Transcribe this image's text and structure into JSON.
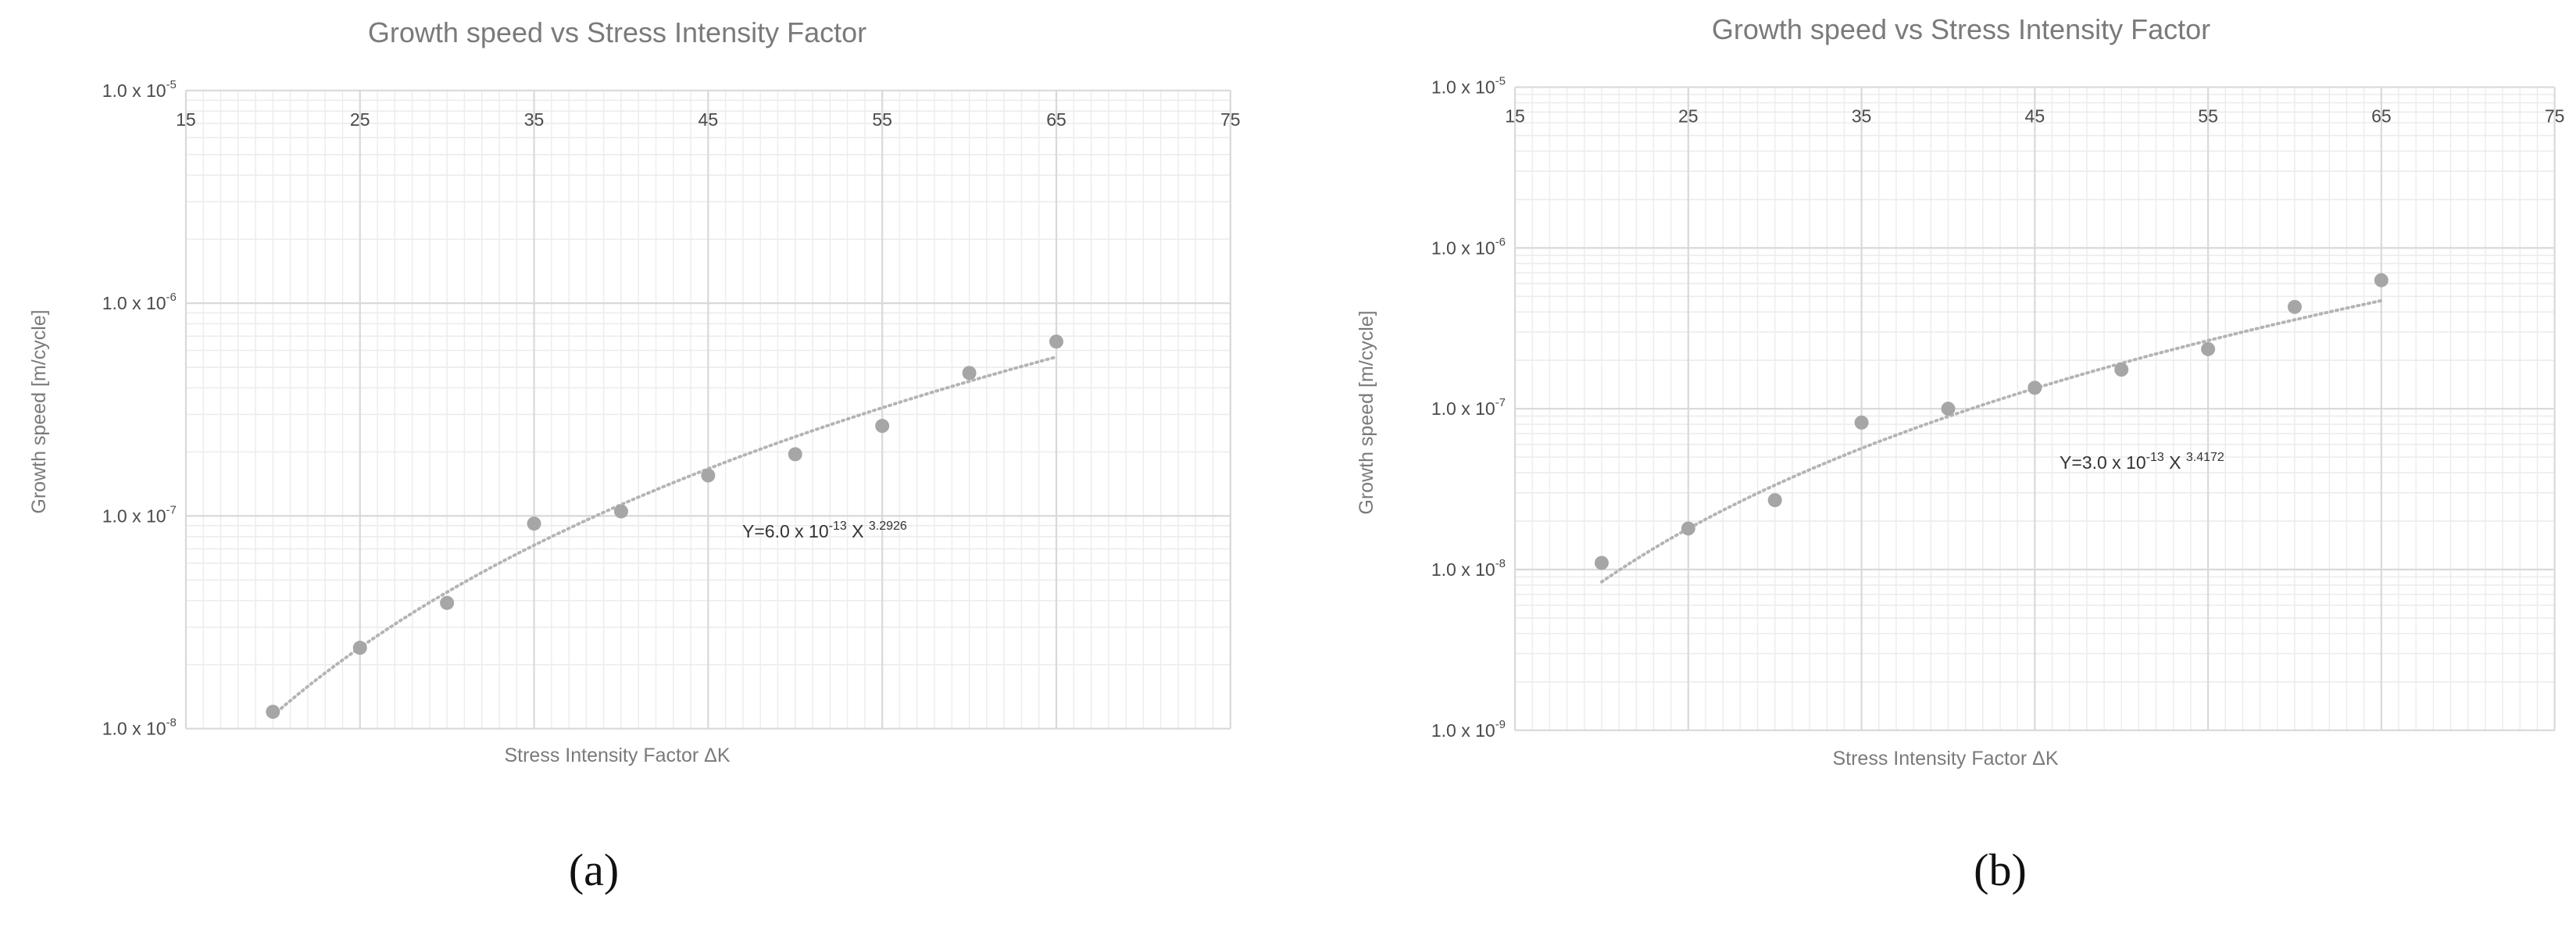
{
  "chart_data": [
    {
      "type": "scatter",
      "title": "Growth speed vs Stress Intensity Factor",
      "xlabel": "Stress Intensity Factor ΔK",
      "ylabel": "Growth speed [m/cycle]",
      "panel_label": "(a)",
      "x_ticks": [
        "15",
        "25",
        "35",
        "45",
        "55",
        "65",
        "75"
      ],
      "xlim": [
        15,
        75
      ],
      "y_scale": "log",
      "ylim": [
        1e-08,
        1e-05
      ],
      "y_ticks": [
        {
          "value": 1e-08,
          "mantissa": "1.0 x 10",
          "exp": "-8"
        },
        {
          "value": 1e-07,
          "mantissa": "1.0 x 10",
          "exp": "-7"
        },
        {
          "value": 1e-06,
          "mantissa": "1.0 x 10",
          "exp": "-6"
        },
        {
          "value": 1e-05,
          "mantissa": "1.0 x 10",
          "exp": "-5"
        }
      ],
      "grid": true,
      "series": [
        {
          "x": [
            20,
            25,
            30,
            35,
            40,
            45,
            50,
            55,
            60,
            65
          ],
          "y": [
            1.2e-08,
            2.4e-08,
            3.9e-08,
            9.2e-08,
            1.05e-07,
            1.55e-07,
            1.95e-07,
            2.65e-07,
            4.7e-07,
            6.6e-07
          ]
        }
      ],
      "trendline": {
        "type": "power",
        "coef": 6e-13,
        "exponent": 3.2926,
        "x_range": [
          20,
          65
        ]
      },
      "equation": {
        "prefix": "Y=6.0 x 10",
        "sup1": "-13",
        "mid": " X ",
        "sup2": "3.2926"
      },
      "colors": {
        "points": "#a6a6a6",
        "trend": "#b4b4b4",
        "grid_major": "#d9d9d9",
        "grid_minor": "#ececec"
      }
    },
    {
      "type": "scatter",
      "title": "Growth speed vs Stress Intensity Factor",
      "xlabel": "Stress Intensity Factor ΔK",
      "ylabel": "Growth speed [m/cycle]",
      "panel_label": "(b)",
      "x_ticks": [
        "15",
        "25",
        "35",
        "45",
        "55",
        "65",
        "75"
      ],
      "xlim": [
        15,
        75
      ],
      "y_scale": "log",
      "ylim": [
        1e-09,
        1e-05
      ],
      "y_ticks": [
        {
          "value": 1e-09,
          "mantissa": "1.0 x 10",
          "exp": "-9"
        },
        {
          "value": 1e-08,
          "mantissa": "1.0 x 10",
          "exp": "-8"
        },
        {
          "value": 1e-07,
          "mantissa": "1.0 x 10",
          "exp": "-7"
        },
        {
          "value": 1e-06,
          "mantissa": "1.0 x 10",
          "exp": "-6"
        },
        {
          "value": 1e-05,
          "mantissa": "1.0 x 10",
          "exp": "-5"
        }
      ],
      "grid": true,
      "series": [
        {
          "x": [
            20,
            25,
            30,
            35,
            40,
            45,
            50,
            55,
            60,
            65
          ],
          "y": [
            1.1e-08,
            1.8e-08,
            2.7e-08,
            8.2e-08,
            1e-07,
            1.35e-07,
            1.75e-07,
            2.35e-07,
            4.3e-07,
            6.3e-07
          ]
        }
      ],
      "trendline": {
        "type": "power",
        "coef": 3e-13,
        "exponent": 3.4172,
        "x_range": [
          20,
          65
        ]
      },
      "equation": {
        "prefix": "Y=3.0 x 10",
        "sup1": "-13",
        "mid": " X ",
        "sup2": "3.4172"
      },
      "colors": {
        "points": "#a6a6a6",
        "trend": "#b4b4b4",
        "grid_major": "#d9d9d9",
        "grid_minor": "#ececec"
      }
    }
  ]
}
